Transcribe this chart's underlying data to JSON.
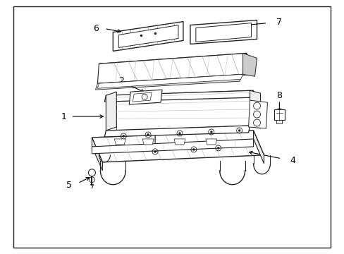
{
  "background_color": "#ffffff",
  "border_color": "#222222",
  "line_color": "#222222",
  "text_color": "#000000",
  "fig_width": 4.89,
  "fig_height": 3.6,
  "dpi": 100
}
